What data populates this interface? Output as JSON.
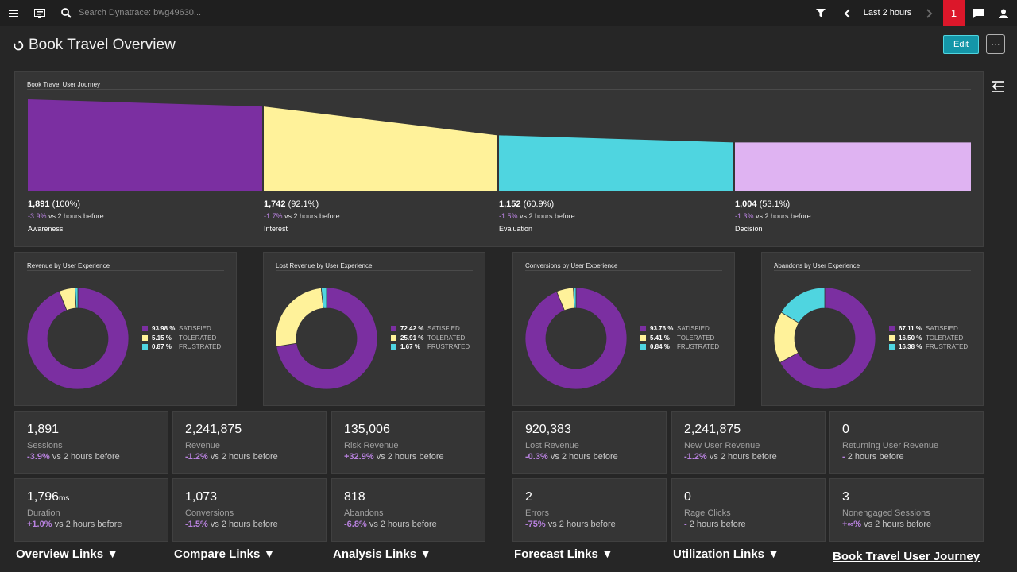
{
  "topbar": {
    "menu_icon": "hamburger-icon",
    "search_placeholder": "Search Dynatrace: bwg49630...",
    "timeframe": "Last 2 hours",
    "problems_count": "1"
  },
  "header": {
    "title": "Book Travel Overview",
    "edit_label": "Edit",
    "more_label": "···"
  },
  "colors": {
    "satisfied": "#7b2fa1",
    "tolerated": "#fff29a",
    "frustrated": "#4fd5e0",
    "decision": "#dfb3f2",
    "accent": "#1496a8"
  },
  "funnel": {
    "title": "Book Travel User Journey",
    "stages": [
      {
        "value": "1,891",
        "pct": "(100%)",
        "delta": "-3.9%",
        "delta_text": "vs 2 hours before",
        "label": "Awareness"
      },
      {
        "value": "1,742",
        "pct": "(92.1%)",
        "delta": "-1.7%",
        "delta_text": "vs 2 hours before",
        "label": "Interest"
      },
      {
        "value": "1,152",
        "pct": "(60.9%)",
        "delta": "-1.5%",
        "delta_text": "vs 2 hours before",
        "label": "Evaluation"
      },
      {
        "value": "1,004",
        "pct": "(53.1%)",
        "delta": "-1.3%",
        "delta_text": "vs 2 hours before",
        "label": "Decision"
      }
    ],
    "chart_data": {
      "type": "funnel",
      "categories": [
        "Awareness",
        "Interest",
        "Evaluation",
        "Decision"
      ],
      "values": [
        1891,
        1742,
        1152,
        1004
      ]
    }
  },
  "donuts": [
    {
      "title": "Revenue by User Experience",
      "values": [
        93.98,
        5.15,
        0.87
      ],
      "labels": [
        "93.98 %",
        "5.15 %",
        "0.87 %"
      ]
    },
    {
      "title": "Lost Revenue by User Experience",
      "values": [
        72.42,
        25.91,
        1.67
      ],
      "labels": [
        "72.42 %",
        "25.91 %",
        "1.67 %"
      ]
    },
    {
      "title": "Conversions by User Experience",
      "values": [
        93.76,
        5.41,
        0.84
      ],
      "labels": [
        "93.76 %",
        "5.41 %",
        "0.84 %"
      ]
    },
    {
      "title": "Abandons by User Experience",
      "values": [
        67.11,
        16.5,
        16.38
      ],
      "labels": [
        "67.11 %",
        "16.50 %",
        "16.38 %"
      ]
    }
  ],
  "legend_names": [
    "SATISFIED",
    "TOLERATED",
    "FRUSTRATED"
  ],
  "kpis": [
    {
      "value": "1,891",
      "unit": "",
      "label": "Sessions",
      "delta": "-3.9%",
      "delta_text": "vs 2 hours before"
    },
    {
      "value": "2,241,875",
      "unit": "",
      "label": "Revenue",
      "delta": "-1.2%",
      "delta_text": "vs 2 hours before"
    },
    {
      "value": "135,006",
      "unit": "",
      "label": "Risk Revenue",
      "delta": "+32.9%",
      "delta_text": "vs 2 hours before"
    },
    {
      "value": "920,383",
      "unit": "",
      "label": "Lost Revenue",
      "delta": "-0.3%",
      "delta_text": "vs 2 hours before"
    },
    {
      "value": "2,241,875",
      "unit": "",
      "label": "New User Revenue",
      "delta": "-1.2%",
      "delta_text": "vs 2 hours before"
    },
    {
      "value": "0",
      "unit": "",
      "label": "Returning User Revenue",
      "delta": "-",
      "delta_text": "2 hours before"
    },
    {
      "value": "1,796",
      "unit": "ms",
      "label": "Duration",
      "delta": "+1.0%",
      "delta_text": "vs 2 hours before"
    },
    {
      "value": "1,073",
      "unit": "",
      "label": "Conversions",
      "delta": "-1.5%",
      "delta_text": "vs 2 hours before"
    },
    {
      "value": "818",
      "unit": "",
      "label": "Abandons",
      "delta": "-6.8%",
      "delta_text": "vs 2 hours before"
    },
    {
      "value": "2",
      "unit": "",
      "label": "Errors",
      "delta": "-75%",
      "delta_text": "vs 2 hours before"
    },
    {
      "value": "0",
      "unit": "",
      "label": "Rage Clicks",
      "delta": "-",
      "delta_text": "2 hours before"
    },
    {
      "value": "3",
      "unit": "",
      "label": "Nonengaged Sessions",
      "delta": "+∞%",
      "delta_text": "vs 2 hours before"
    }
  ],
  "links": {
    "overview": "Overview Links ▼",
    "compare": "Compare Links ▼",
    "analysis": "Analysis Links ▼",
    "forecast": "Forecast Links ▼",
    "utilization": "Utilization Links ▼",
    "journey": "Book Travel User Journey"
  }
}
